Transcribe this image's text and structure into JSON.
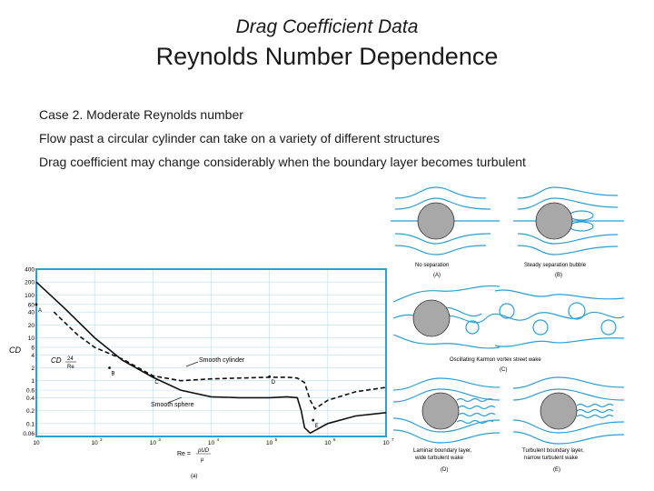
{
  "slide": {
    "subtitle": "Drag Coefficient Data",
    "title": "Reynolds Number Dependence",
    "bullets": [
      "Case 2. Moderate Reynolds number",
      "Flow past a circular cylinder can take on a variety of different structures",
      "Drag coefficient may change considerably when the boundary layer becomes turbulent"
    ]
  },
  "colors": {
    "streamline": "#2a9fd8",
    "cylinder": "#a8a8a8",
    "frame": "#2a9fd8"
  },
  "chart_data": {
    "type": "line",
    "xscale": "log",
    "yscale": "log",
    "xlim": [
      10,
      10000000
    ],
    "ylim": [
      0.05,
      400
    ],
    "x_ticks": [
      10,
      100,
      1000,
      10000,
      100000,
      1000000,
      10000000
    ],
    "x_tick_labels": [
      "10",
      "10",
      "10",
      "10",
      "10",
      "10",
      "10"
    ],
    "x_tick_exponents": [
      "",
      "2",
      "3",
      "4",
      "5",
      "6",
      "7"
    ],
    "y_ticks": [
      400,
      200,
      100,
      60,
      40,
      20,
      10,
      6,
      4,
      2,
      1,
      0.6,
      0.4,
      0.2,
      0.1,
      0.06
    ],
    "y_tick_labels": [
      "400",
      "200",
      "100",
      "60",
      "40",
      "20",
      "10",
      "6",
      "4",
      "2",
      "1",
      "0.6",
      "0.4",
      "0.2",
      "0.1",
      "0.06"
    ],
    "ylabel": "CD",
    "xlabel_main": "Re =",
    "xlabel_frac_num": "ρUD",
    "xlabel_frac_den": "μ",
    "caption": "(a)",
    "dashed_formula_num": "24",
    "dashed_formula_den": "Re",
    "dashed_formula_prefix": "CD",
    "point_labels": [
      "A",
      "B",
      "C",
      "D",
      "E"
    ],
    "points": [
      {
        "label": "A",
        "x": 10,
        "y": 60
      },
      {
        "label": "B",
        "x": 180,
        "y": 2.0
      },
      {
        "label": "C",
        "x": 1000,
        "y": 1.25
      },
      {
        "label": "D",
        "x": 100000,
        "y": 1.25
      },
      {
        "label": "E",
        "x": 560000,
        "y": 0.12
      }
    ],
    "annotations": [
      "Smooth cylinder",
      "Smooth sphere"
    ],
    "series": [
      {
        "name": "Smooth cylinder",
        "style": "dashed",
        "x": [
          20,
          50,
          100,
          300,
          1000,
          3000,
          10000,
          30000,
          100000,
          200000,
          300000,
          400000,
          500000,
          600000,
          1000000,
          3000000,
          10000000
        ],
        "y": [
          40,
          12,
          6,
          3.2,
          1.3,
          1.0,
          1.1,
          1.15,
          1.2,
          1.2,
          1.15,
          0.9,
          0.35,
          0.22,
          0.35,
          0.55,
          0.7
        ]
      },
      {
        "name": "Smooth sphere",
        "style": "solid",
        "x": [
          10,
          30,
          100,
          300,
          1000,
          3000,
          10000,
          30000,
          100000,
          200000,
          300000,
          350000,
          400000,
          500000,
          1000000,
          3000000,
          10000000
        ],
        "y": [
          200,
          50,
          10,
          3,
          1.2,
          0.6,
          0.42,
          0.4,
          0.4,
          0.42,
          0.4,
          0.2,
          0.08,
          0.06,
          0.1,
          0.15,
          0.18
        ]
      }
    ]
  },
  "flow_panels": [
    {
      "caption": "No separation",
      "letter": "(A)"
    },
    {
      "caption": "Steady separation bubble",
      "letter": "(B)"
    },
    {
      "caption": "Oscillating Karmon vortex street wake",
      "letter": "(C)"
    },
    {
      "caption_lines": [
        "Laminar boundary layer,",
        "wide turbulent wake"
      ],
      "letter": "(D)"
    },
    {
      "caption_lines": [
        "Turbulent boundary layer,",
        "narrow turbulent wake"
      ],
      "letter": "(E)"
    }
  ]
}
